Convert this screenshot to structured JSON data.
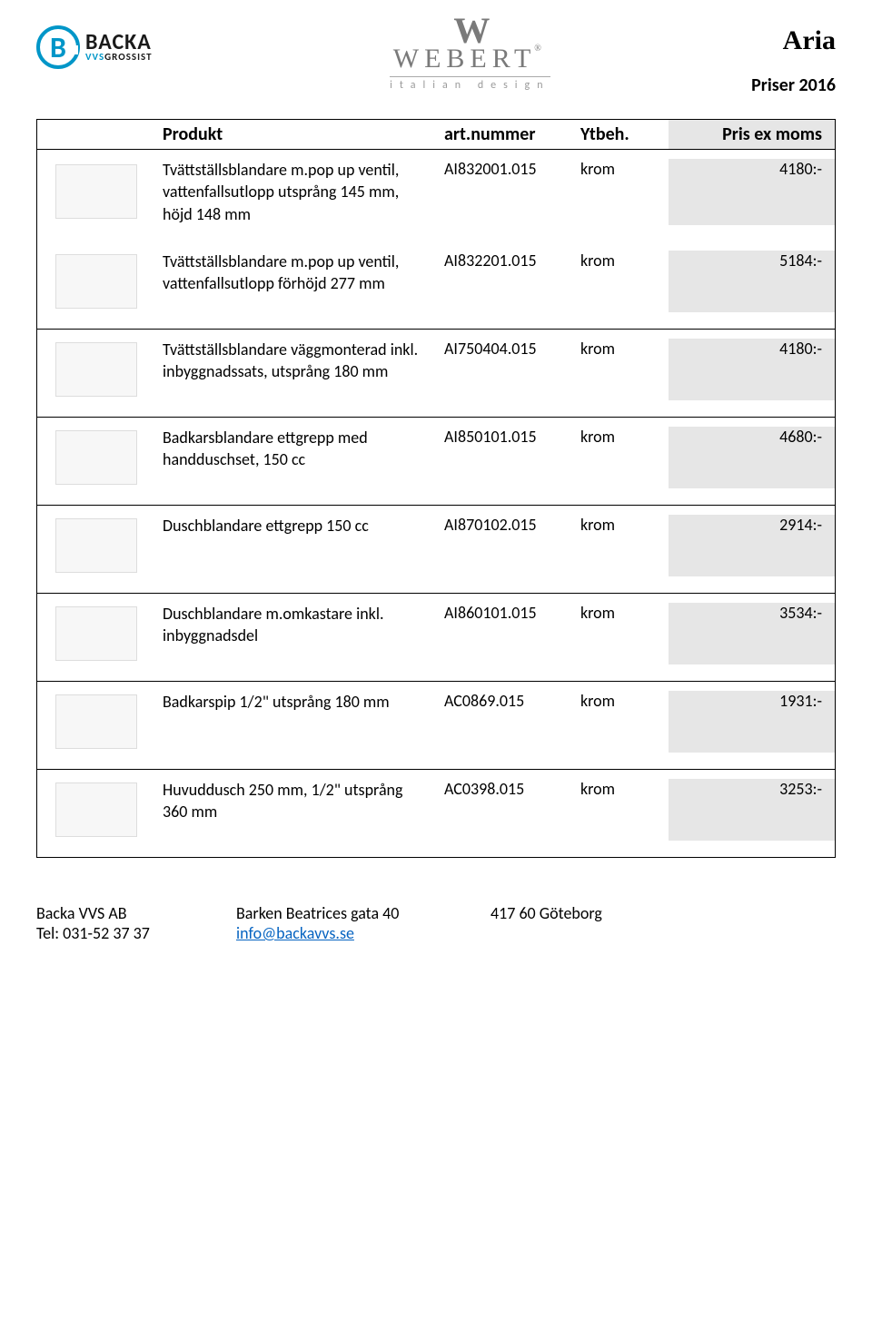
{
  "header": {
    "logo_backa_main": "BACKA",
    "logo_backa_sub_vvs": "VVS",
    "logo_backa_sub_rest": "GROSSIST",
    "logo_webert_main": "WEBERT",
    "logo_webert_sub": "italian design",
    "aria": "Aria",
    "priser": "Priser 2016"
  },
  "columns": {
    "produkt": "Produkt",
    "artnummer": "art.nummer",
    "ytbeh": "Ytbeh.",
    "pris": "Pris ex moms"
  },
  "groups": [
    {
      "rows": [
        {
          "produkt": "Tvättställsblandare m.pop up ventil, vattenfallsutlopp utsprång 145 mm, höjd 148 mm",
          "art": "AI832001.015",
          "ytb": "krom",
          "pris": "4180:-"
        },
        {
          "produkt": "Tvättställsblandare m.pop up ventil, vattenfallsutlopp förhöjd 277 mm",
          "art": "AI832201.015",
          "ytb": "krom",
          "pris": "5184:-"
        }
      ]
    },
    {
      "rows": [
        {
          "produkt": "Tvättställsblandare väggmonterad inkl. inbygg­nadssats, utsprång 180 mm",
          "art": "AI750404.015",
          "ytb": "krom",
          "pris": "4180:-"
        }
      ]
    },
    {
      "rows": [
        {
          "produkt": "Badkarsblandare ettgrepp med handduschset, 150 cc",
          "art": "AI850101.015",
          "ytb": "krom",
          "pris": "4680:-"
        }
      ]
    },
    {
      "rows": [
        {
          "produkt": "Duschblandare ettgrepp 150 cc",
          "art": "AI870102.015",
          "ytb": "krom",
          "pris": "2914:-"
        }
      ]
    },
    {
      "rows": [
        {
          "produkt": "Duschblandare m.omkastare inkl. inbyggnadsdel",
          "art": "AI860101.015",
          "ytb": "krom",
          "pris": "3534:-"
        }
      ]
    },
    {
      "rows": [
        {
          "produkt": "Badkarspip 1/2\" utsprång 180 mm",
          "art": "AC0869.015",
          "ytb": "krom",
          "pris": "1931:-"
        }
      ]
    },
    {
      "rows": [
        {
          "produkt": "Huvuddusch 250 mm, 1/2\" utsprång 360 mm",
          "art": "AC0398.015",
          "ytb": "krom",
          "pris": "3253:-"
        }
      ]
    }
  ],
  "footer": {
    "company": "Backa VVS AB",
    "tel": "Tel: 031-52 37 37",
    "address": "Barken Beatrices gata 40",
    "email": "info@backavvs.se",
    "postal": "417 60  Göteborg"
  },
  "colors": {
    "accent": "#0096c8",
    "price_bg": "#e6e6e6",
    "link": "#0563c1",
    "text": "#000000",
    "grey_logo": "#7a7a7a"
  }
}
